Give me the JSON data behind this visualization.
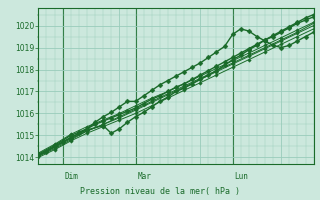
{
  "bg_color": "#cce8dd",
  "grid_color": "#99ccbb",
  "line_color": "#1a6b2a",
  "axis_color": "#1a6b2a",
  "ylabel_ticks": [
    1014,
    1015,
    1016,
    1017,
    1018,
    1019,
    1020
  ],
  "ylim": [
    1013.7,
    1020.8
  ],
  "xlim": [
    0,
    68
  ],
  "xlabel": "Pression niveau de la mer( hPa )",
  "day_lines": [
    6,
    24,
    48
  ],
  "day_labels": [
    [
      "Dim",
      6
    ],
    [
      "Mar",
      24
    ],
    [
      "Lun",
      48
    ]
  ],
  "series": [
    [
      0,
      1014.1,
      2,
      1014.25,
      4,
      1014.5,
      6,
      1014.7,
      8,
      1014.9,
      10,
      1015.1,
      12,
      1015.3,
      14,
      1015.5,
      16,
      1015.65,
      18,
      1015.8,
      20,
      1015.95,
      22,
      1016.1,
      24,
      1016.25,
      26,
      1016.45,
      28,
      1016.65,
      30,
      1016.8,
      32,
      1017.0,
      34,
      1017.2,
      36,
      1017.35,
      38,
      1017.55,
      40,
      1017.75,
      42,
      1017.95,
      44,
      1018.15,
      46,
      1018.35,
      48,
      1018.55,
      50,
      1018.75,
      52,
      1018.95,
      54,
      1019.15,
      56,
      1019.35,
      58,
      1019.55,
      60,
      1019.75,
      62,
      1019.95,
      64,
      1020.15,
      66,
      1020.35,
      68,
      1020.5
    ],
    [
      0,
      1014.05,
      4,
      1014.4,
      8,
      1014.8,
      12,
      1015.2,
      16,
      1015.5,
      20,
      1015.85,
      24,
      1016.2,
      28,
      1016.55,
      32,
      1016.9,
      36,
      1017.25,
      40,
      1017.6,
      44,
      1017.95,
      48,
      1018.3,
      52,
      1018.65,
      56,
      1019.0,
      60,
      1019.35,
      64,
      1019.7,
      68,
      1020.1
    ],
    [
      0,
      1014.15,
      4,
      1014.55,
      8,
      1015.0,
      10,
      1015.15,
      12,
      1015.3,
      14,
      1015.6,
      16,
      1015.85,
      18,
      1016.05,
      20,
      1016.3,
      22,
      1016.55,
      24,
      1016.55,
      26,
      1016.8,
      28,
      1017.05,
      30,
      1017.3,
      32,
      1017.5,
      34,
      1017.7,
      36,
      1017.9,
      38,
      1018.1,
      40,
      1018.3,
      42,
      1018.55,
      44,
      1018.8,
      46,
      1019.05,
      48,
      1019.6,
      50,
      1019.85,
      52,
      1019.75,
      54,
      1019.5,
      56,
      1019.3,
      58,
      1019.1,
      60,
      1019.0,
      62,
      1019.1,
      64,
      1019.3,
      66,
      1019.5,
      68,
      1019.7
    ],
    [
      0,
      1014.1,
      4,
      1014.5,
      8,
      1014.9,
      12,
      1015.25,
      16,
      1015.45,
      18,
      1015.1,
      20,
      1015.3,
      22,
      1015.6,
      24,
      1015.85,
      26,
      1016.05,
      28,
      1016.3,
      30,
      1016.55,
      32,
      1016.75,
      34,
      1017.0,
      36,
      1017.15,
      38,
      1017.35,
      40,
      1017.55,
      42,
      1017.75,
      44,
      1017.95,
      46,
      1018.2,
      48,
      1018.45,
      50,
      1018.65,
      52,
      1018.9,
      54,
      1019.1,
      56,
      1019.35,
      58,
      1019.5,
      60,
      1019.7,
      62,
      1019.9,
      64,
      1020.1,
      66,
      1020.25,
      68,
      1020.4
    ],
    [
      0,
      1014.0,
      4,
      1014.35,
      8,
      1014.75,
      12,
      1015.1,
      16,
      1015.4,
      20,
      1015.7,
      24,
      1016.0,
      28,
      1016.35,
      32,
      1016.7,
      36,
      1017.05,
      40,
      1017.4,
      44,
      1017.75,
      48,
      1018.1,
      52,
      1018.45,
      56,
      1018.8,
      60,
      1019.15,
      64,
      1019.5,
      68,
      1019.85
    ],
    [
      0,
      1014.2,
      4,
      1014.6,
      8,
      1015.05,
      12,
      1015.4,
      16,
      1015.7,
      20,
      1016.0,
      24,
      1016.35,
      28,
      1016.7,
      32,
      1017.0,
      36,
      1017.35,
      40,
      1017.7,
      44,
      1018.05,
      48,
      1018.4,
      52,
      1018.75,
      56,
      1019.1,
      60,
      1019.45,
      64,
      1019.8,
      68,
      1020.15
    ],
    [
      0,
      1014.1,
      4,
      1014.45,
      8,
      1014.85,
      12,
      1015.2,
      16,
      1015.5,
      20,
      1015.8,
      24,
      1016.15,
      28,
      1016.5,
      32,
      1016.85,
      36,
      1017.2,
      40,
      1017.55,
      44,
      1017.9,
      48,
      1018.25,
      52,
      1018.6,
      56,
      1018.95,
      60,
      1019.3,
      64,
      1019.65,
      68,
      1020.0
    ]
  ],
  "marker_sizes": [
    2.5,
    1.8,
    2.5,
    2.5,
    1.8,
    1.8,
    1.8
  ],
  "lw": [
    1.0,
    0.7,
    1.0,
    1.0,
    0.7,
    0.7,
    0.7
  ]
}
